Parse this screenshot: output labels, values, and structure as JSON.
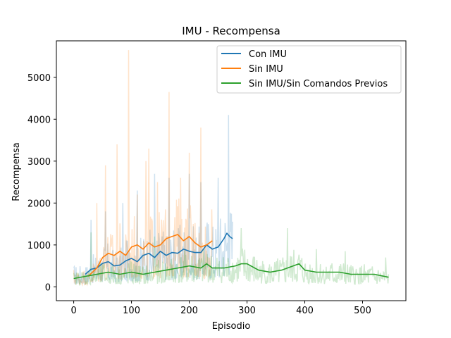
{
  "chart_data": {
    "type": "line",
    "title": "IMU - Recompensa",
    "xlabel": "Episodio",
    "ylabel": "Recompensa",
    "xlim": [
      -30,
      575
    ],
    "ylim": [
      -330,
      5870
    ],
    "xticks": [
      0,
      100,
      200,
      300,
      400,
      500
    ],
    "yticks": [
      0,
      1000,
      2000,
      3000,
      4000,
      5000
    ],
    "legend_position": "top-right",
    "series": [
      {
        "name": "Con IMU",
        "color": "#1f77b4",
        "episodes": 275,
        "smoothed_x": [
          20,
          30,
          40,
          50,
          60,
          70,
          80,
          90,
          100,
          110,
          120,
          130,
          140,
          150,
          160,
          170,
          180,
          190,
          200,
          210,
          220,
          230,
          240,
          250,
          260,
          265,
          270,
          275
        ],
        "smoothed_y": [
          300,
          420,
          450,
          560,
          600,
          500,
          520,
          620,
          680,
          600,
          750,
          800,
          700,
          850,
          750,
          820,
          800,
          900,
          850,
          820,
          820,
          1000,
          900,
          950,
          1150,
          1280,
          1200,
          1150
        ],
        "raw_peaks": [
          [
            30,
            1600
          ],
          [
            55,
            1800
          ],
          [
            85,
            2000
          ],
          [
            110,
            2300
          ],
          [
            140,
            2700
          ],
          [
            165,
            2600
          ],
          [
            200,
            2700
          ],
          [
            220,
            2500
          ],
          [
            250,
            2600
          ],
          [
            268,
            4100
          ]
        ]
      },
      {
        "name": "Sin IMU",
        "color": "#ff7f0e",
        "episodes": 240,
        "smoothed_x": [
          25,
          40,
          50,
          60,
          70,
          80,
          90,
          100,
          110,
          120,
          130,
          140,
          150,
          160,
          170,
          180,
          190,
          200,
          210,
          220,
          230,
          240
        ],
        "smoothed_y": [
          250,
          450,
          700,
          800,
          750,
          850,
          750,
          950,
          1000,
          900,
          1050,
          950,
          1000,
          1150,
          1200,
          1250,
          1100,
          1200,
          1050,
          950,
          1000,
          1100
        ],
        "raw_peaks": [
          [
            40,
            2000
          ],
          [
            55,
            2900
          ],
          [
            75,
            3400
          ],
          [
            95,
            5650
          ],
          [
            110,
            2200
          ],
          [
            125,
            3000
          ],
          [
            130,
            3300
          ],
          [
            145,
            2500
          ],
          [
            165,
            4650
          ],
          [
            185,
            2600
          ],
          [
            200,
            3200
          ],
          [
            220,
            3800
          ]
        ]
      },
      {
        "name": "Sin IMU/Sin Comandos Previos",
        "color": "#2ca02c",
        "episodes": 545,
        "smoothed_x": [
          0,
          20,
          40,
          60,
          80,
          100,
          120,
          140,
          160,
          180,
          200,
          220,
          230,
          240,
          260,
          280,
          290,
          300,
          320,
          340,
          360,
          380,
          390,
          400,
          420,
          440,
          460,
          480,
          500,
          520,
          545
        ],
        "smoothed_y": [
          200,
          250,
          300,
          350,
          300,
          350,
          300,
          350,
          400,
          450,
          500,
          450,
          550,
          450,
          450,
          500,
          550,
          550,
          400,
          350,
          400,
          500,
          550,
          400,
          350,
          350,
          350,
          300,
          300,
          300,
          230
        ],
        "raw_peaks": [
          [
            30,
            1300
          ],
          [
            140,
            1200
          ],
          [
            290,
            1400
          ],
          [
            370,
            1400
          ],
          [
            420,
            900
          ],
          [
            470,
            850
          ],
          [
            540,
            700
          ]
        ]
      }
    ]
  }
}
